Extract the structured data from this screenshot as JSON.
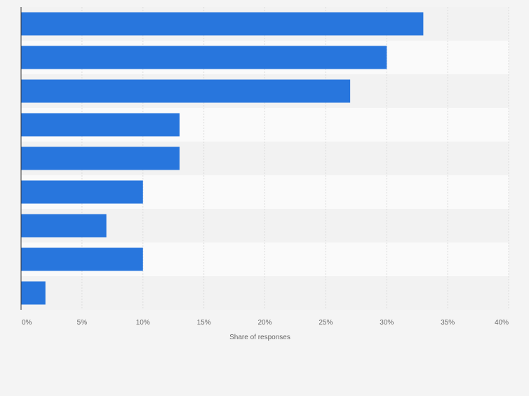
{
  "chart_data": {
    "type": "bar",
    "orientation": "horizontal",
    "title": "",
    "xlabel": "Share of responses",
    "ylabel": "",
    "categories": [
      "",
      "",
      "",
      "",
      "",
      "",
      "",
      "",
      ""
    ],
    "values": [
      33,
      30,
      27,
      13,
      13,
      10,
      7,
      10,
      2
    ],
    "xlim": [
      0,
      40
    ],
    "ticks": [
      0,
      5,
      10,
      15,
      20,
      25,
      30,
      35,
      40
    ],
    "tick_labels": [
      "0%",
      "5%",
      "10%",
      "15%",
      "20%",
      "25%",
      "30%",
      "35%",
      "40%"
    ],
    "grid": true,
    "colors": {
      "bar": "#2876dd",
      "band_light": "#fafafa",
      "band_dark": "#f2f2f2",
      "gridline": "#dcdcdc",
      "axis": "#333333",
      "tick_text": "#666666"
    }
  }
}
